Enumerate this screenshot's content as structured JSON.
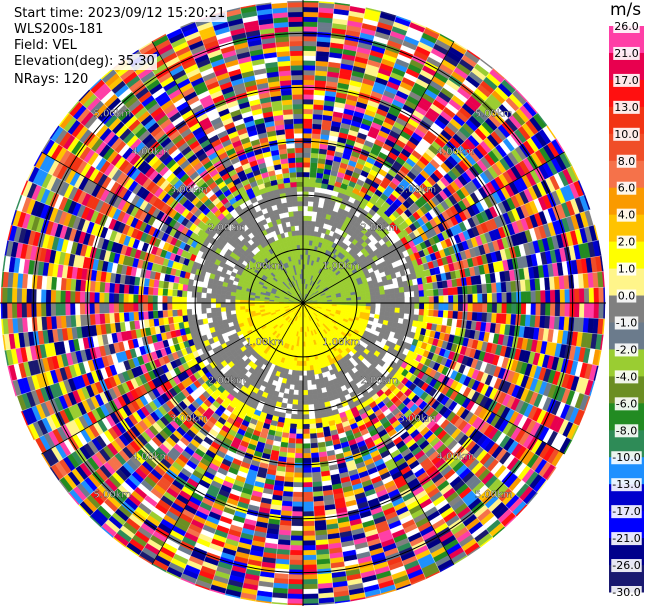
{
  "header": {
    "start_time": "Start time: 2023/09/12 15:20:21",
    "instrument": "WLS200s-181",
    "field": "Field: VEL",
    "elevation": "Elevation(deg): 35.30",
    "nrays": "NRays: 120"
  },
  "chart_data": {
    "type": "heatmap",
    "projection": "polar (PPI)",
    "field": "VEL",
    "n_rays": 120,
    "elevation_deg": 35.3,
    "range_rings_km": [
      1.0,
      2.0,
      3.0,
      4.0,
      5.0
    ],
    "ring_labels": [
      "1.00km",
      "2.00km",
      "3.00km",
      "4.00km",
      "5.00km"
    ],
    "max_range_km": 5.6,
    "grid": true,
    "colorbar": {
      "title": "m/s",
      "placement": "right",
      "ticks": [
        "26.0",
        "21.0",
        "17.0",
        "13.0",
        "10.0",
        "8.0",
        "6.0",
        "4.0",
        "2.0",
        "1.0",
        "0.0",
        "-1.0",
        "-2.0",
        "-4.0",
        "-6.0",
        "-8.0",
        "-10.0",
        "-13.0",
        "-17.0",
        "-21.0",
        "-26.0",
        "-30.0"
      ],
      "colors": [
        "#ff3fa6",
        "#e8004f",
        "#ff1010",
        "#f23414",
        "#f04e28",
        "#f5724a",
        "#fa9a00",
        "#ffc300",
        "#ffff00",
        "#fff58a",
        "#808080",
        "#6b7b8c",
        "#9acd32",
        "#6b8e23",
        "#228b22",
        "#2e8b57",
        "#1e90ff",
        "#0000cd",
        "#0000ff",
        "#00008b",
        "#191970",
        "#000080"
      ]
    },
    "description_values": {
      "near_field_ring_km": [
        0.0,
        1.2
      ],
      "north_half_velocity_ms": -2.0,
      "south_half_velocity_ms": 2.0,
      "beyond_km_noisy": 2.3
    }
  }
}
